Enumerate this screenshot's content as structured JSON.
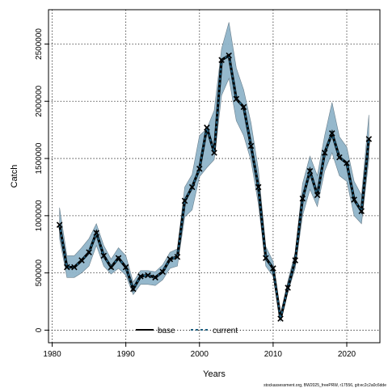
{
  "chart_data": {
    "type": "line",
    "xlabel": "Years",
    "ylabel": "Catch",
    "xlim": [
      1979.5,
      2024.5
    ],
    "ylim": [
      -110000,
      2800000
    ],
    "xticks": [
      1980,
      1990,
      2000,
      2010,
      2020
    ],
    "yticks": [
      0,
      500000,
      1000000,
      1500000,
      2000000,
      2500000
    ],
    "xtick_labels": [
      "1980",
      "1990",
      "2000",
      "2010",
      "2020"
    ],
    "ytick_labels": [
      "0",
      "500000",
      "1000000",
      "1500000",
      "2000000",
      "2500000"
    ],
    "grid": true,
    "legend_position": "bottom",
    "colors": {
      "band_fill": "#8fb4c9",
      "band_stroke": "#6a7f8c",
      "current_line": "#1f5f80",
      "base_line": "#000000",
      "grid": "#000000"
    },
    "series": [
      {
        "name": "base",
        "style": "solid",
        "values": []
      },
      {
        "name": "current",
        "style": "dashed",
        "x": [
          1981,
          1982,
          1983,
          1984,
          1985,
          1986,
          1987,
          1988,
          1989,
          1990,
          1991,
          1992,
          1993,
          1994,
          1995,
          1996,
          1997,
          1998,
          1999,
          2000,
          2001,
          2002,
          2003,
          2004,
          2005,
          2006,
          2007,
          2008,
          2009,
          2010,
          2011,
          2012,
          2013,
          2014,
          2015,
          2016,
          2017,
          2018,
          2019,
          2020,
          2021,
          2022,
          2023
        ],
        "values": [
          920000,
          550000,
          550000,
          610000,
          680000,
          850000,
          650000,
          550000,
          630000,
          550000,
          360000,
          470000,
          480000,
          460000,
          510000,
          620000,
          640000,
          1130000,
          1250000,
          1410000,
          1770000,
          1550000,
          2360000,
          2400000,
          2020000,
          1950000,
          1610000,
          1250000,
          630000,
          540000,
          100000,
          370000,
          610000,
          1150000,
          1390000,
          1180000,
          1550000,
          1720000,
          1510000,
          1460000,
          1140000,
          1040000,
          1670000
        ],
        "lower": [
          800000,
          460000,
          460000,
          500000,
          560000,
          740000,
          560000,
          490000,
          540000,
          480000,
          310000,
          400000,
          400000,
          390000,
          440000,
          540000,
          560000,
          990000,
          1050000,
          1340000,
          1420000,
          1490000,
          2050000,
          2200000,
          1830000,
          1700000,
          1480000,
          1100000,
          560000,
          470000,
          75000,
          330000,
          540000,
          1000000,
          1230000,
          1080000,
          1390000,
          1550000,
          1350000,
          1300000,
          1000000,
          930000,
          1490000
        ],
        "upper": [
          1070000,
          650000,
          650000,
          720000,
          800000,
          930000,
          740000,
          620000,
          720000,
          650000,
          420000,
          520000,
          520000,
          510000,
          570000,
          680000,
          710000,
          1250000,
          1360000,
          1700000,
          1760000,
          1920000,
          2460000,
          2690000,
          2290000,
          2100000,
          1810000,
          1400000,
          730000,
          600000,
          140000,
          430000,
          680000,
          1280000,
          1520000,
          1350000,
          1700000,
          1990000,
          1690000,
          1600000,
          1300000,
          1180000,
          1880000
        ]
      }
    ],
    "footer_text": "stockassessment.org, BW2025_freePRW, r17556, git:ec2c2a0c6dde"
  }
}
